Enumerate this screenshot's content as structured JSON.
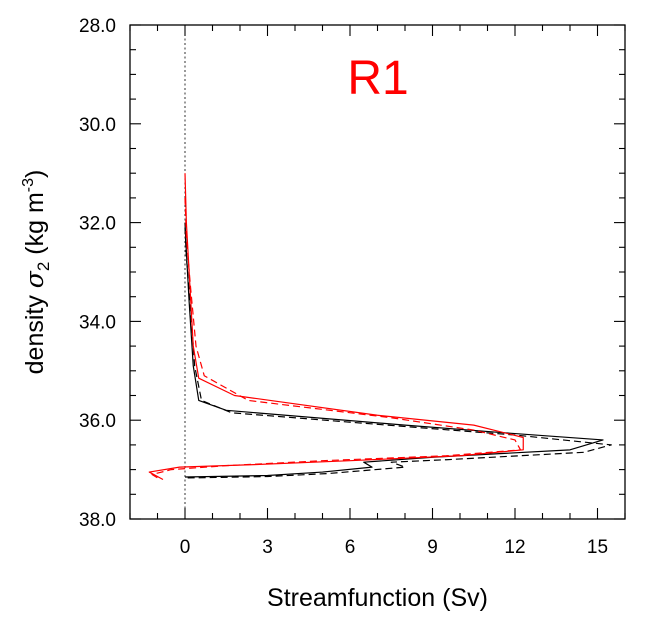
{
  "chart_data": {
    "type": "line",
    "title": "R1",
    "title_color": "#ff0000",
    "xlabel": "Streamfunction (Sv)",
    "ylabel_prefix": "density ",
    "ylabel_symbol": "σ",
    "ylabel_subscript": "2",
    "ylabel_units": " (kg m",
    "ylabel_superscript": "-3",
    "ylabel_close": ")",
    "xlim": [
      -2,
      16
    ],
    "ylim": [
      28.0,
      38.0
    ],
    "y_inverted": true,
    "grid": false,
    "xticks": [
      {
        "value": 0,
        "label": "0"
      },
      {
        "value": 3,
        "label": "3"
      },
      {
        "value": 6,
        "label": "6"
      },
      {
        "value": 9,
        "label": "9"
      },
      {
        "value": 12,
        "label": "12"
      },
      {
        "value": 15,
        "label": "15"
      }
    ],
    "yticks": [
      {
        "value": 28.0,
        "label": "28.0"
      },
      {
        "value": 30.0,
        "label": "30.0"
      },
      {
        "value": 32.0,
        "label": "32.0"
      },
      {
        "value": 34.0,
        "label": "34.0"
      },
      {
        "value": 36.0,
        "label": "36.0"
      },
      {
        "value": 38.0,
        "label": "38.0"
      }
    ],
    "zero_line": {
      "x": 0,
      "color": "#000000",
      "dash": "dotted"
    },
    "series": [
      {
        "color": "#000000",
        "dash": "solid",
        "points": [
          [
            0.0,
            32.0
          ],
          [
            0.05,
            32.6
          ],
          [
            0.15,
            33.6
          ],
          [
            0.3,
            34.9
          ],
          [
            0.5,
            35.6
          ],
          [
            1.5,
            35.8
          ],
          [
            8.0,
            36.1
          ],
          [
            11.5,
            36.25
          ],
          [
            15.2,
            36.4
          ],
          [
            14.0,
            36.6
          ],
          [
            9.0,
            36.75
          ],
          [
            6.5,
            36.85
          ],
          [
            6.8,
            36.95
          ],
          [
            5.0,
            37.05
          ],
          [
            3.0,
            37.12
          ],
          [
            0.0,
            37.15
          ]
        ]
      },
      {
        "color": "#000000",
        "dash": "dashed",
        "points": [
          [
            0.0,
            32.1
          ],
          [
            0.05,
            32.7
          ],
          [
            0.2,
            33.7
          ],
          [
            0.35,
            34.9
          ],
          [
            0.6,
            35.6
          ],
          [
            1.7,
            35.85
          ],
          [
            8.5,
            36.15
          ],
          [
            12.0,
            36.3
          ],
          [
            15.5,
            36.5
          ],
          [
            14.5,
            36.65
          ],
          [
            9.5,
            36.8
          ],
          [
            7.5,
            36.85
          ],
          [
            8.0,
            36.95
          ],
          [
            5.2,
            37.08
          ],
          [
            3.0,
            37.14
          ],
          [
            0.0,
            37.17
          ]
        ]
      },
      {
        "color": "#ff0000",
        "dash": "solid",
        "points": [
          [
            0.0,
            31.0
          ],
          [
            0.05,
            32.0
          ],
          [
            0.15,
            33.0
          ],
          [
            0.3,
            34.5
          ],
          [
            0.5,
            35.15
          ],
          [
            1.8,
            35.5
          ],
          [
            7.0,
            35.9
          ],
          [
            10.5,
            36.1
          ],
          [
            12.3,
            36.35
          ],
          [
            12.3,
            36.6
          ],
          [
            10.0,
            36.72
          ],
          [
            6.0,
            36.82
          ],
          [
            2.5,
            36.9
          ],
          [
            -0.2,
            36.95
          ],
          [
            -1.3,
            37.05
          ],
          [
            -0.8,
            37.2
          ]
        ]
      },
      {
        "color": "#ff0000",
        "dash": "dashed",
        "points": [
          [
            0.0,
            31.5
          ],
          [
            0.05,
            32.3
          ],
          [
            0.2,
            33.3
          ],
          [
            0.4,
            34.5
          ],
          [
            0.7,
            35.1
          ],
          [
            2.3,
            35.6
          ],
          [
            7.5,
            35.95
          ],
          [
            10.5,
            36.2
          ],
          [
            12.0,
            36.4
          ],
          [
            12.2,
            36.6
          ],
          [
            9.5,
            36.72
          ],
          [
            5.0,
            36.82
          ],
          [
            1.5,
            36.92
          ],
          [
            -0.5,
            37.0
          ],
          [
            -1.2,
            37.1
          ],
          [
            -0.9,
            37.2
          ]
        ]
      }
    ]
  }
}
